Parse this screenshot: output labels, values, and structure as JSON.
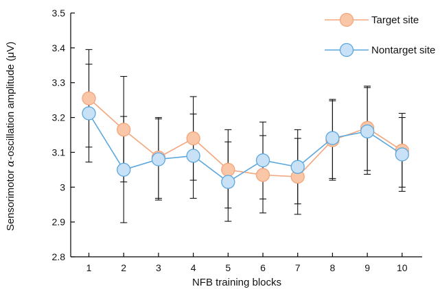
{
  "chart_data": {
    "type": "line",
    "xlabel": "NFB training blocks",
    "ylabel_prefix": "Sensorimotor ",
    "ylabel_symbol": "α",
    "ylabel_suffix": "-oscillation amplitude (μV)",
    "x": [
      1,
      2,
      3,
      4,
      5,
      6,
      7,
      8,
      9,
      10
    ],
    "x_ticks": [
      "1",
      "2",
      "3",
      "4",
      "5",
      "6",
      "7",
      "8",
      "9",
      "10"
    ],
    "ylim": [
      2.8,
      3.5
    ],
    "y_ticks": [
      "2.8",
      "2.9",
      "3",
      "3.1",
      "3.2",
      "3.3",
      "3.4",
      "3.5"
    ],
    "grid": false,
    "legend_position": "top-right",
    "series": [
      {
        "name": "Target site",
        "color": "#f3a57c",
        "fill": "#f9c6a8",
        "values": [
          3.255,
          3.165,
          3.085,
          3.14,
          3.05,
          3.035,
          3.03,
          3.135,
          3.17,
          3.105
        ],
        "err_low": [
          3.115,
          3.015,
          2.968,
          3.02,
          2.94,
          2.926,
          2.952,
          3.025,
          3.048,
          3.0
        ],
        "err_high": [
          3.395,
          3.318,
          3.2,
          3.26,
          3.165,
          3.148,
          3.14,
          3.252,
          3.29,
          3.212
        ]
      },
      {
        "name": "Nontarget site",
        "color": "#5aa7de",
        "fill": "#c9e1f7",
        "values": [
          3.212,
          3.05,
          3.08,
          3.09,
          3.015,
          3.077,
          3.058,
          3.141,
          3.16,
          3.094
        ],
        "err_low": [
          3.072,
          2.898,
          2.963,
          2.968,
          2.902,
          2.966,
          2.922,
          3.02,
          3.037,
          2.988
        ],
        "err_high": [
          3.353,
          3.203,
          3.196,
          3.21,
          3.13,
          3.187,
          3.165,
          3.248,
          3.286,
          3.2
        ]
      }
    ]
  }
}
